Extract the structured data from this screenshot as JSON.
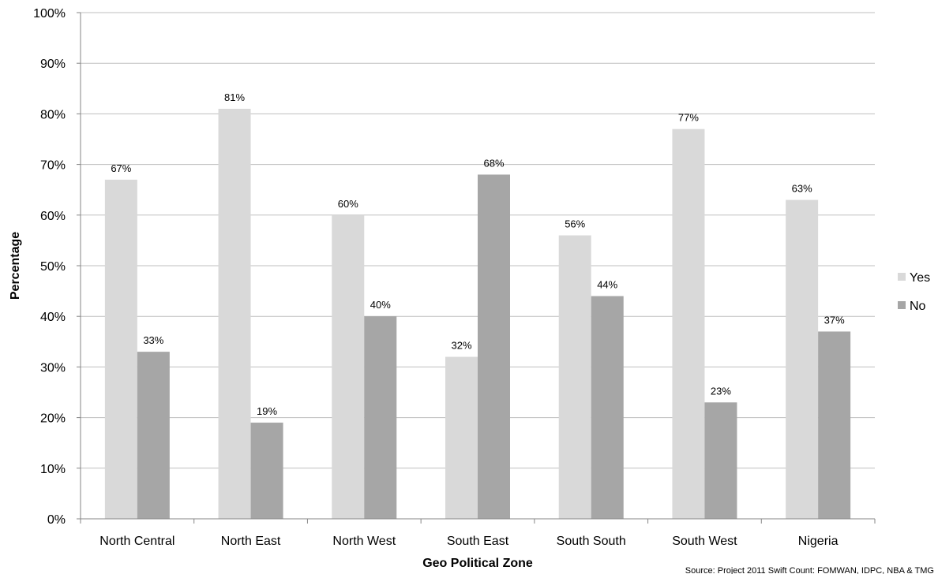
{
  "chart_data": {
    "type": "bar",
    "title": "",
    "xlabel": "Geo Political Zone",
    "ylabel": "Percentage",
    "ylim": [
      0,
      100
    ],
    "yticks": [
      "0%",
      "10%",
      "20%",
      "30%",
      "40%",
      "50%",
      "60%",
      "70%",
      "80%",
      "90%",
      "100%"
    ],
    "categories": [
      "North Central",
      "North East",
      "North West",
      "South East",
      "South South",
      "South West",
      "Nigeria"
    ],
    "series": [
      {
        "name": "Yes",
        "color": "#d9d9d9",
        "values": [
          67,
          81,
          60,
          32,
          56,
          77,
          63
        ],
        "labels": [
          "67%",
          "81%",
          "60%",
          "32%",
          "56%",
          "77%",
          "63%"
        ]
      },
      {
        "name": "No",
        "color": "#a6a6a6",
        "values": [
          33,
          19,
          40,
          68,
          44,
          23,
          37
        ],
        "labels": [
          "33%",
          "19%",
          "40%",
          "68%",
          "44%",
          "23%",
          "37%"
        ]
      }
    ],
    "grid": true,
    "legend_position": "right"
  },
  "source_note": "Source: Project 2011 Swift Count: FOMWAN, IDPC, NBA & TMG"
}
